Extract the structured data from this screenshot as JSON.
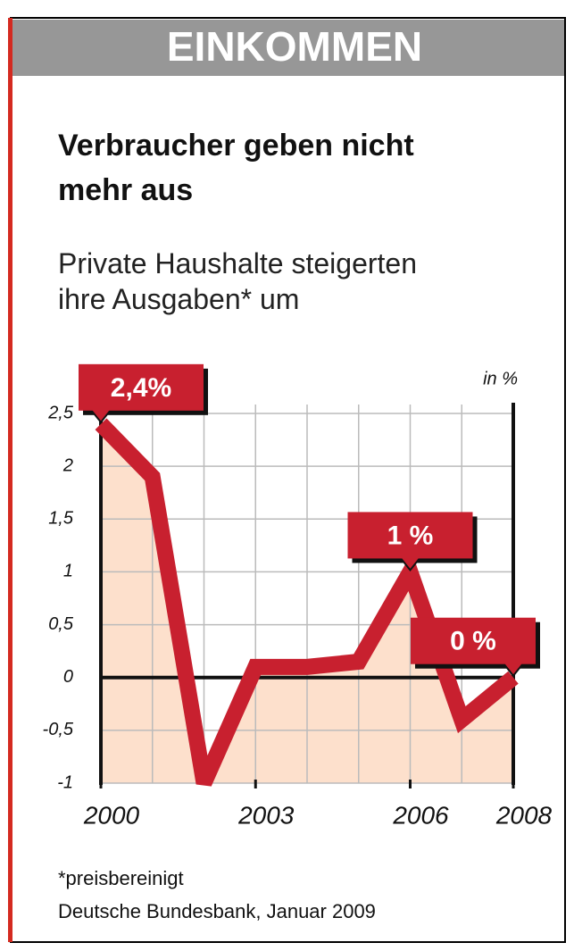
{
  "header": "EINKOMMEN",
  "chart_data": {
    "type": "line",
    "title": "Verbraucher geben nicht mehr aus",
    "subtitle": "Private Haushalte steigerten ihre Ausgaben* um",
    "unit_label": "in %",
    "x": [
      2000,
      2001,
      2002,
      2003,
      2004,
      2005,
      2006,
      2007,
      2008
    ],
    "values": [
      2.4,
      1.9,
      -1.0,
      0.1,
      0.1,
      0.15,
      1.0,
      -0.4,
      0.0
    ],
    "value_labels": [
      "2,4%",
      null,
      null,
      null,
      null,
      null,
      "1 %",
      null,
      "0 %"
    ],
    "color": "#c8202f",
    "area_color": "#fde0cc",
    "xlim": [
      2000,
      2008
    ],
    "xticks": [
      2000,
      2003,
      2006,
      2008
    ],
    "ylim": [
      -1,
      2.5
    ],
    "yticks": [
      -1,
      {
        "value": -0.5,
        "label": "-0,5"
      },
      0,
      {
        "value": 0.5,
        "label": "0,5"
      },
      1,
      {
        "value": 1.5,
        "label": "1,5"
      },
      2,
      {
        "value": 2.5,
        "label": "2,5"
      }
    ],
    "grid": true
  },
  "footnote": "*preisbereinigt",
  "source": "Deutsche Bundesbank, Januar 2009"
}
